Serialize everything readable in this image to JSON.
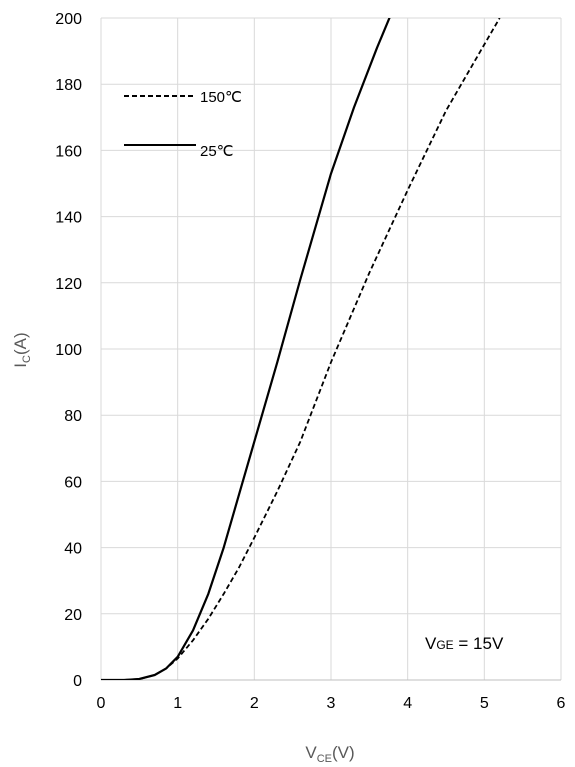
{
  "chart_data": {
    "type": "line",
    "xlabel": {
      "main": "V",
      "sub": "CE",
      "unit": "(V)"
    },
    "ylabel": {
      "main": "I",
      "sub": "C",
      "unit": "(A)"
    },
    "xlim": [
      0,
      6
    ],
    "ylim": [
      0,
      200
    ],
    "x_ticks": [
      0,
      1,
      2,
      3,
      4,
      5,
      6
    ],
    "y_ticks": [
      0,
      20,
      40,
      60,
      80,
      100,
      120,
      140,
      160,
      180,
      200
    ],
    "grid": true,
    "legend_position": "top-left",
    "annotation": {
      "main": "V",
      "sub": "GE",
      "rest": " = 15V"
    },
    "series": [
      {
        "name": "150℃",
        "style": "dashed",
        "color": "#000000",
        "x": [
          0,
          0.3,
          0.5,
          0.7,
          0.85,
          1.0,
          1.2,
          1.4,
          1.6,
          1.8,
          2.0,
          2.3,
          2.6,
          3.0,
          3.5,
          4.0,
          4.5,
          5.0,
          5.2
        ],
        "y": [
          0,
          0,
          0.3,
          1.5,
          3.5,
          6.5,
          12,
          18.5,
          26,
          34,
          43,
          57,
          72,
          96,
          123,
          148,
          172,
          192,
          200
        ]
      },
      {
        "name": "25℃",
        "style": "solid",
        "color": "#000000",
        "x": [
          0,
          0.3,
          0.5,
          0.7,
          0.85,
          1.0,
          1.2,
          1.4,
          1.6,
          1.8,
          2.0,
          2.3,
          2.6,
          3.0,
          3.3,
          3.6,
          3.78
        ],
        "y": [
          0,
          0,
          0.3,
          1.5,
          3.5,
          7,
          15,
          26,
          40,
          56,
          72,
          96,
          121,
          153,
          173,
          191,
          201
        ]
      }
    ]
  }
}
